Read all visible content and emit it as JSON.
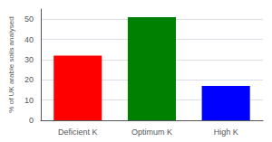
{
  "chart_data": {
    "type": "bar",
    "ylabel": "% of UK arable soils analysed",
    "categories": [
      "Deficient K",
      "Optimum K",
      "High K"
    ],
    "values": [
      32,
      51,
      17
    ],
    "colors": [
      "#ff0000",
      "#008000",
      "#0000ff"
    ],
    "ylim": [
      0,
      55
    ],
    "yticks": [
      0,
      10,
      20,
      30,
      40,
      50
    ],
    "grid": true
  }
}
